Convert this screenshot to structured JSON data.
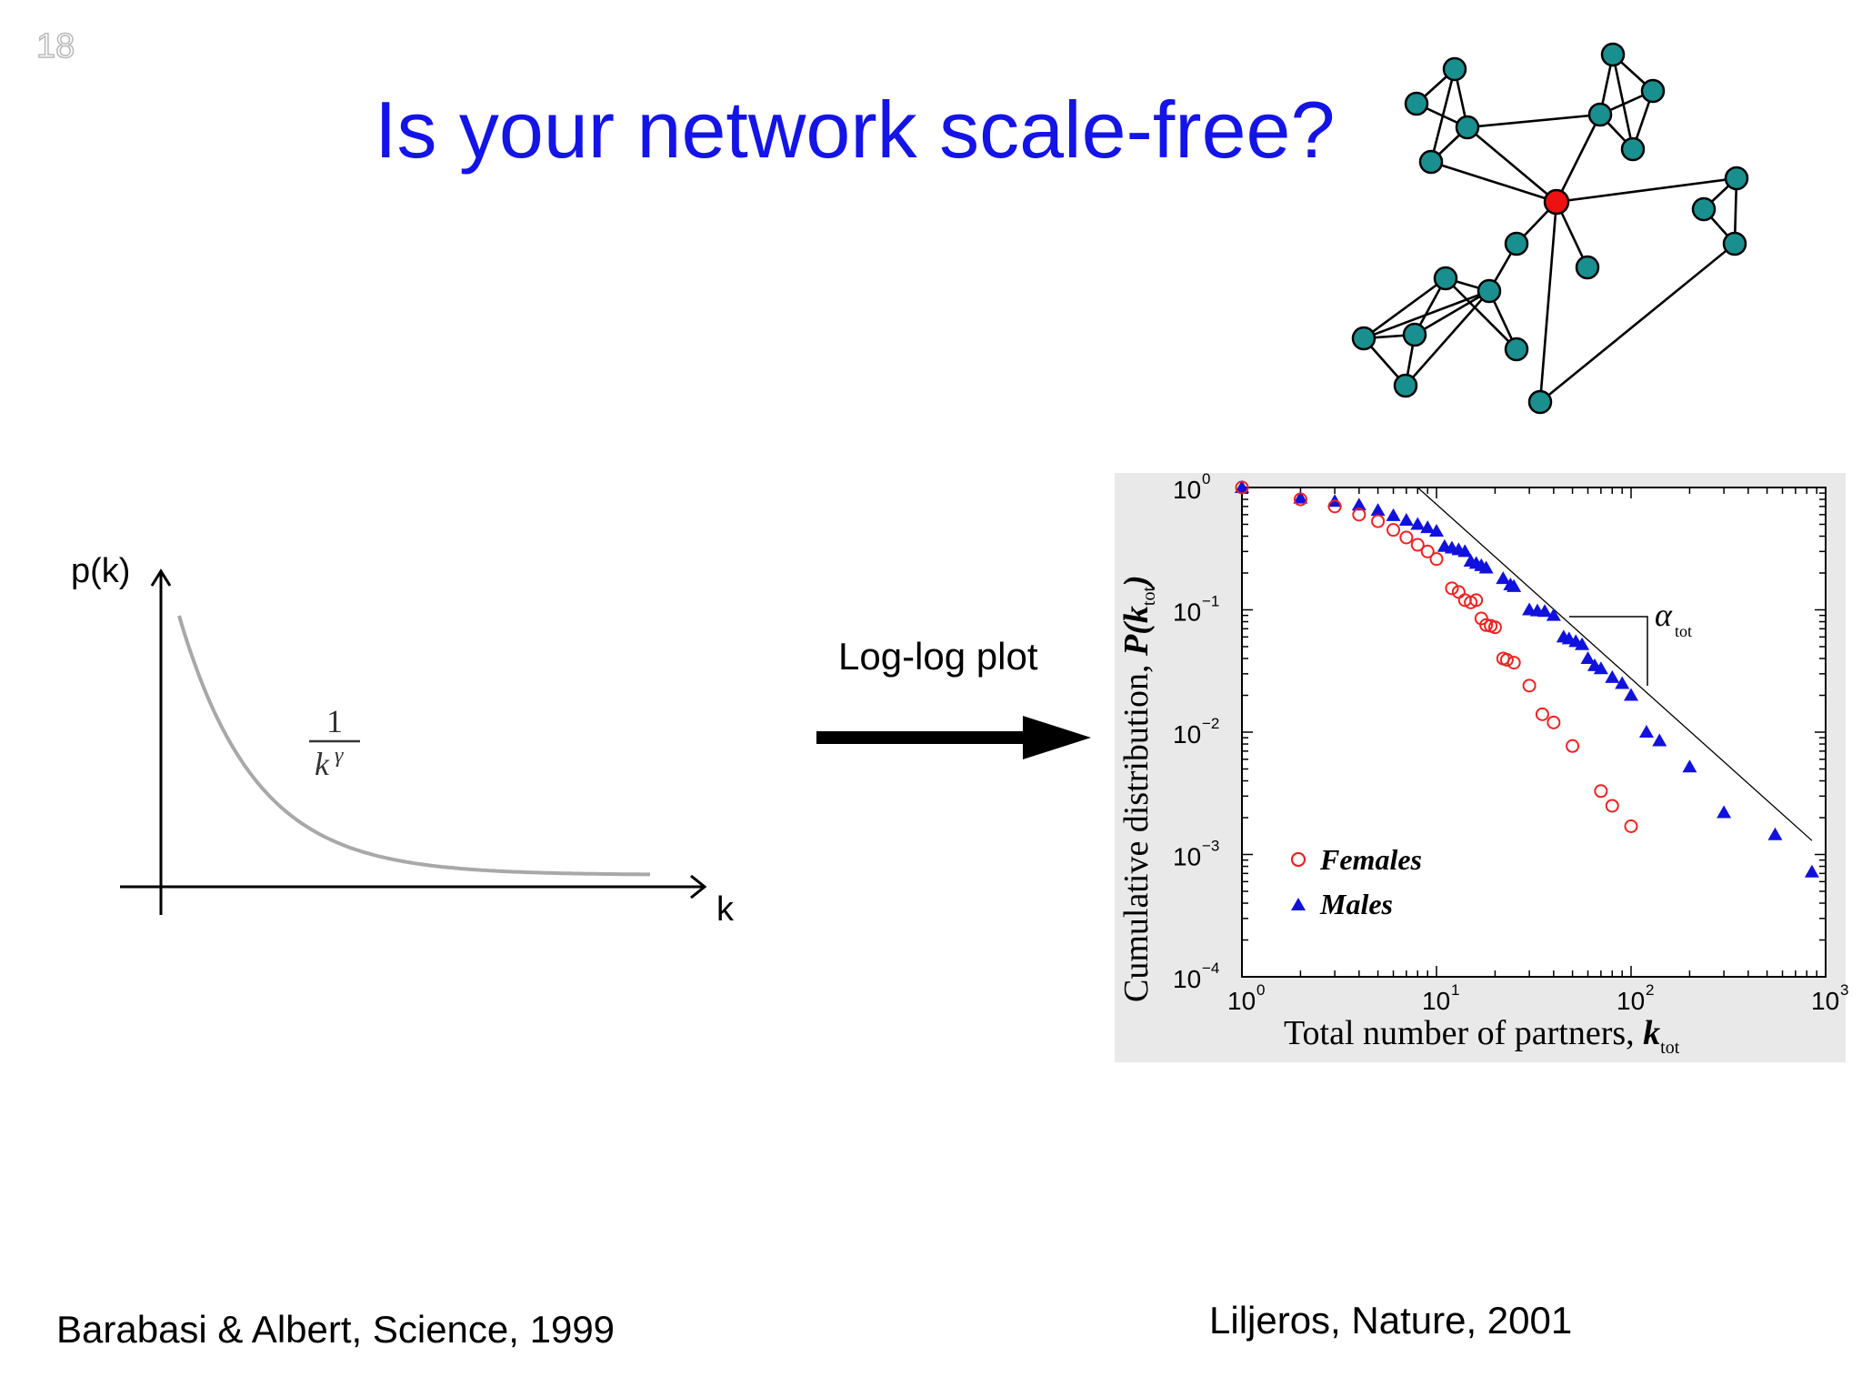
{
  "slide": {
    "number": "18",
    "title": "Is your network scale-free?",
    "arrow_label": "Log-log plot",
    "citation_left": "Barabasi & Albert, Science, 1999",
    "citation_right": "Liljeros, Nature, 2001",
    "colors": {
      "title": "#1414e6",
      "node": "#1a8f8f",
      "hub": "#ee1111",
      "females": "#ee2222",
      "males": "#1111dd"
    }
  },
  "chart_data": [
    {
      "type": "line",
      "xlabel": "k",
      "ylabel": "p(k)",
      "curve_label_numerator": "1",
      "curve_label_denominator": "k",
      "curve_label_exponent": "γ"
    },
    {
      "type": "scatter",
      "xscale": "log",
      "yscale": "log",
      "xlim": [
        1,
        1000
      ],
      "ylim": [
        0.0001,
        1
      ],
      "xlabel_main": "Total number of partners, ",
      "xlabel_var": "k",
      "xlabel_sub": "tot",
      "ylabel_main": "Cumulative distribution, ",
      "ylabel_var": "P(k",
      "ylabel_sub": "tot",
      "ylabel_close": ")",
      "x_ticks": [
        {
          "value": 1,
          "base": "10",
          "exp": "0"
        },
        {
          "value": 10,
          "base": "10",
          "exp": "1"
        },
        {
          "value": 100,
          "base": "10",
          "exp": "2"
        },
        {
          "value": 1000,
          "base": "10",
          "exp": "3"
        }
      ],
      "y_ticks": [
        {
          "value": 1,
          "base": "10",
          "exp": "0"
        },
        {
          "value": 0.1,
          "base": "10",
          "exp": "−1"
        },
        {
          "value": 0.01,
          "base": "10",
          "exp": "−2"
        },
        {
          "value": 0.001,
          "base": "10",
          "exp": "−3"
        },
        {
          "value": 0.0001,
          "base": "10",
          "exp": "−4"
        }
      ],
      "legend_position": "bottom-left",
      "annotation": {
        "symbol": "α",
        "sub": "tot"
      },
      "reference_line": {
        "x": [
          8,
          850
        ],
        "y": [
          1,
          0.0013
        ]
      },
      "series": [
        {
          "name": "Females",
          "marker": "open-circle",
          "color": "#ee2222",
          "points": [
            [
              1,
              1
            ],
            [
              2,
              0.8
            ],
            [
              3,
              0.7
            ],
            [
              4,
              0.6
            ],
            [
              5,
              0.53
            ],
            [
              6,
              0.45
            ],
            [
              7,
              0.39
            ],
            [
              8,
              0.34
            ],
            [
              9,
              0.3
            ],
            [
              10,
              0.26
            ],
            [
              12,
              0.15
            ],
            [
              13,
              0.14
            ],
            [
              14,
              0.12
            ],
            [
              15,
              0.115
            ],
            [
              16,
              0.12
            ],
            [
              17,
              0.085
            ],
            [
              18,
              0.075
            ],
            [
              19,
              0.074
            ],
            [
              20,
              0.072
            ],
            [
              22,
              0.04
            ],
            [
              23,
              0.039
            ],
            [
              25,
              0.037
            ],
            [
              30,
              0.024
            ],
            [
              35,
              0.014
            ],
            [
              40,
              0.012
            ],
            [
              50,
              0.0077
            ],
            [
              70,
              0.0033
            ],
            [
              80,
              0.0025
            ],
            [
              100,
              0.0017
            ]
          ]
        },
        {
          "name": "Males",
          "marker": "filled-triangle",
          "color": "#1111dd",
          "points": [
            [
              1,
              1
            ],
            [
              2,
              0.82
            ],
            [
              3,
              0.77
            ],
            [
              4,
              0.72
            ],
            [
              5,
              0.65
            ],
            [
              6,
              0.59
            ],
            [
              7,
              0.54
            ],
            [
              8,
              0.5
            ],
            [
              9,
              0.47
            ],
            [
              10,
              0.44
            ],
            [
              11,
              0.33
            ],
            [
              12,
              0.32
            ],
            [
              13,
              0.31
            ],
            [
              14,
              0.3
            ],
            [
              15,
              0.25
            ],
            [
              16,
              0.24
            ],
            [
              17,
              0.23
            ],
            [
              18,
              0.22
            ],
            [
              22,
              0.18
            ],
            [
              24,
              0.16
            ],
            [
              25,
              0.155
            ],
            [
              30,
              0.1
            ],
            [
              33,
              0.098
            ],
            [
              36,
              0.097
            ],
            [
              40,
              0.09
            ],
            [
              45,
              0.06
            ],
            [
              48,
              0.058
            ],
            [
              52,
              0.055
            ],
            [
              56,
              0.052
            ],
            [
              60,
              0.04
            ],
            [
              65,
              0.035
            ],
            [
              70,
              0.033
            ],
            [
              80,
              0.028
            ],
            [
              90,
              0.025
            ],
            [
              100,
              0.02
            ],
            [
              120,
              0.01
            ],
            [
              140,
              0.0085
            ],
            [
              200,
              0.0052
            ],
            [
              300,
              0.0022
            ],
            [
              550,
              0.00145
            ],
            [
              850,
              0.00072
            ]
          ]
        }
      ]
    }
  ]
}
